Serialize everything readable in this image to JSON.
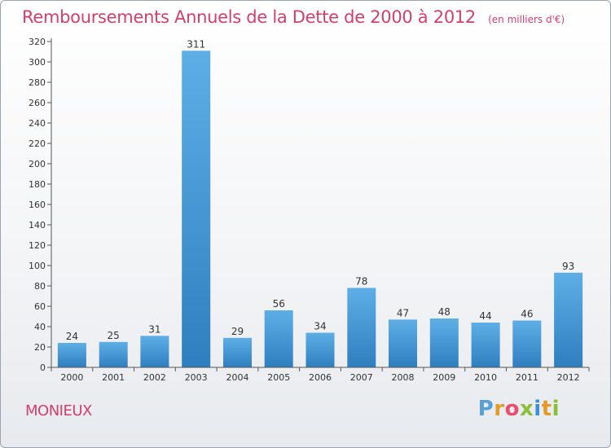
{
  "title": "Remboursements Annuels de la Dette de 2000 à 2012",
  "subtitle": "(en milliers d'€)",
  "town": "MONIEUX",
  "logo": {
    "letters": [
      "P",
      "r",
      "o",
      "x",
      "i",
      "t",
      "i"
    ],
    "colors": [
      "#5aa0d8",
      "#e39b2c",
      "#e84f6f",
      "#8bbf3a",
      "#3d8fd6",
      "#e39b2c",
      "#8bbf3a"
    ]
  },
  "colors": {
    "bar_top": "#5eaee6",
    "bar_bottom": "#2f7fc0",
    "title": "#d23f6a",
    "axis": "#555555"
  },
  "chart_data": {
    "type": "bar",
    "categories": [
      "2000",
      "2001",
      "2002",
      "2003",
      "2004",
      "2005",
      "2006",
      "2007",
      "2008",
      "2009",
      "2010",
      "2011",
      "2012"
    ],
    "values": [
      24,
      25,
      31,
      311,
      29,
      56,
      34,
      78,
      47,
      48,
      44,
      46,
      93
    ],
    "yticks": [
      0,
      20,
      40,
      60,
      80,
      100,
      120,
      140,
      160,
      180,
      200,
      220,
      240,
      260,
      280,
      300,
      320
    ],
    "ylim": [
      0,
      320
    ],
    "grid": false,
    "legend": "none"
  }
}
